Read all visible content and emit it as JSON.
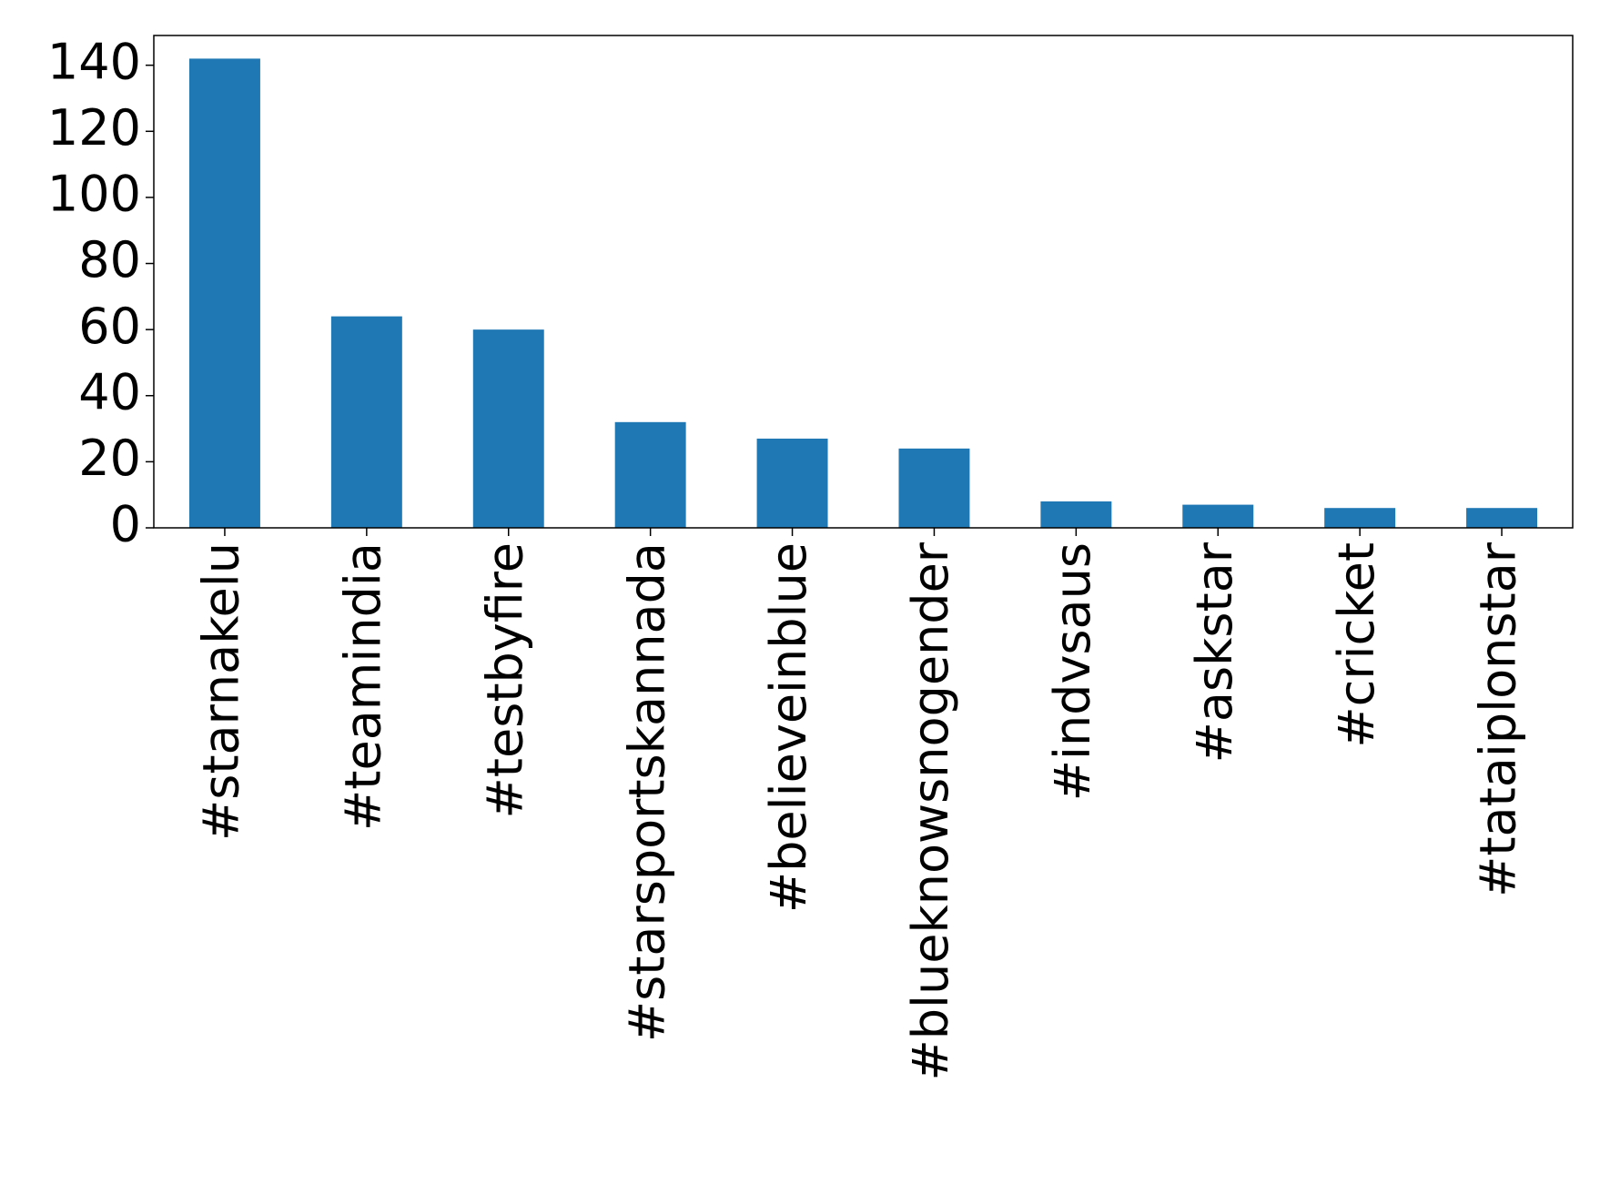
{
  "chart_data": {
    "type": "bar",
    "categories": [
      "#starnakelu",
      "#teamindia",
      "#testbyfire",
      "#starsportskannada",
      "#believeinblue",
      "#blueknowsnogender",
      "#indvsaus",
      "#askstar",
      "#cricket",
      "#tataiplonstar"
    ],
    "values": [
      142,
      64,
      60,
      32,
      27,
      24,
      8,
      7,
      6,
      6
    ],
    "color": "#1f77b4",
    "ylim": [
      0,
      149
    ],
    "yticks": [
      0,
      20,
      40,
      60,
      80,
      100,
      120,
      140
    ],
    "grid": false
  }
}
